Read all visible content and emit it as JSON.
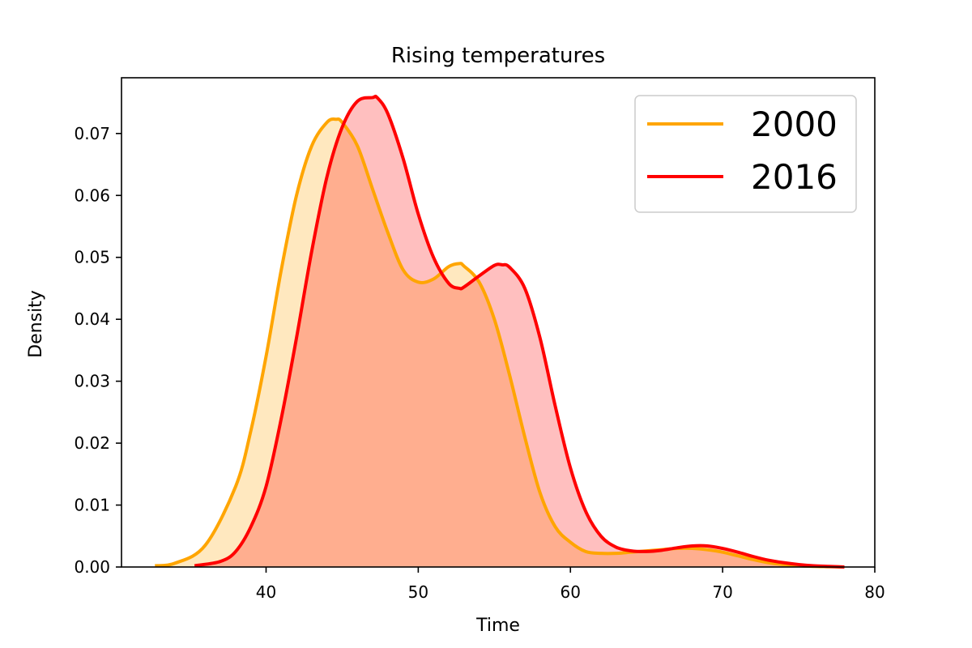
{
  "chart_data": {
    "type": "area",
    "title": "Rising temperatures",
    "xlabel": "Time",
    "ylabel": "Density",
    "xlim": [
      30.5,
      80
    ],
    "ylim": [
      0,
      0.079
    ],
    "xticks": [
      40,
      50,
      60,
      70,
      80
    ],
    "yticks": [
      0.0,
      0.01,
      0.02,
      0.03,
      0.04,
      0.05,
      0.06,
      0.07
    ],
    "xtick_labels": [
      "40",
      "50",
      "60",
      "70",
      "80"
    ],
    "ytick_labels": [
      "0.00",
      "0.01",
      "0.02",
      "0.03",
      "0.04",
      "0.05",
      "0.06",
      "0.07"
    ],
    "grid": false,
    "legend_position": "top-right",
    "series": [
      {
        "name": "2000",
        "color": "#FFA500",
        "fill": "#FFE6BF",
        "x": [
          32.7,
          34,
          36,
          38,
          39,
          40,
          41,
          42,
          43,
          44,
          44.6,
          45,
          46,
          47,
          48,
          49,
          50,
          51,
          52,
          52.7,
          53,
          54,
          55,
          56,
          57,
          58,
          59,
          60,
          61,
          62,
          63,
          64,
          65,
          66,
          67,
          68,
          69,
          70,
          71,
          72,
          73,
          74,
          75,
          76,
          77,
          78
        ],
        "y": [
          0.0002,
          0.0006,
          0.0035,
          0.013,
          0.022,
          0.034,
          0.048,
          0.06,
          0.068,
          0.0718,
          0.0723,
          0.0718,
          0.068,
          0.061,
          0.054,
          0.048,
          0.046,
          0.0465,
          0.0485,
          0.049,
          0.0486,
          0.046,
          0.04,
          0.031,
          0.021,
          0.012,
          0.0065,
          0.004,
          0.0025,
          0.0022,
          0.0022,
          0.0024,
          0.0026,
          0.0028,
          0.003,
          0.003,
          0.0028,
          0.0024,
          0.0018,
          0.0012,
          0.0007,
          0.0004,
          0.0002,
          0.0001,
          5e-05,
          0.0
        ]
      },
      {
        "name": "2016",
        "color": "#FF0000",
        "fill": "#FFBFBF",
        "x": [
          35.3,
          37,
          38,
          39,
          40,
          41,
          42,
          43,
          44,
          45,
          46,
          47,
          47.3,
          48,
          49,
          50,
          51,
          52,
          52.7,
          53,
          54,
          55,
          55.5,
          56,
          57,
          58,
          59,
          60,
          61,
          62,
          63,
          64,
          65,
          66,
          67,
          68,
          69,
          70,
          71,
          72,
          73,
          74,
          75,
          76,
          77,
          78
        ],
        "y": [
          0.0002,
          0.0009,
          0.0025,
          0.0065,
          0.013,
          0.024,
          0.037,
          0.051,
          0.063,
          0.071,
          0.0752,
          0.0758,
          0.0758,
          0.0732,
          0.066,
          0.057,
          0.05,
          0.0458,
          0.045,
          0.0452,
          0.047,
          0.0487,
          0.0488,
          0.0484,
          0.045,
          0.037,
          0.026,
          0.016,
          0.009,
          0.005,
          0.0032,
          0.0026,
          0.0025,
          0.0027,
          0.0031,
          0.0034,
          0.0034,
          0.003,
          0.0024,
          0.0017,
          0.0011,
          0.0007,
          0.0004,
          0.0002,
          0.0001,
          0.0
        ]
      }
    ]
  }
}
